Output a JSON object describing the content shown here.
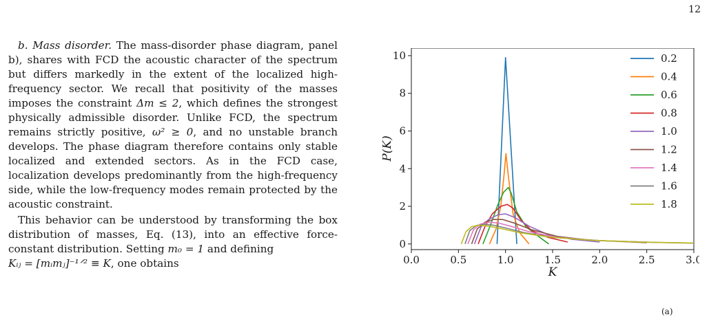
{
  "page_number": "12",
  "text": {
    "para1_heading": "b. Mass disorder.",
    "para1_body_a": " The mass-disorder phase diagram, panel b), shares with FCD the acoustic character of the spectrum but differs markedly in the extent of the localized high-frequency sector. We recall that positivity of the masses imposes the constraint ",
    "para1_constraint": "Δm ≤ 2",
    "para1_body_b": ", which defines the strongest physically admissible disorder. Unlike FCD, the spectrum remains strictly positive, ",
    "para1_omega": "ω² ≥ 0",
    "para1_body_c": ", and no unstable branch develops. The phase diagram therefore contains only stable localized and extended sectors. As in the FCD case, localization develops predominantly from the high-frequency side, while the low-frequency modes remain protected by the acoustic constraint.",
    "para2_body_a": "This behavior can be understood by transforming the box distribution of masses, Eq. (13), into an effective force-constant distribution. Setting ",
    "para2_m0": "m₀ = 1",
    "para2_body_b": " and defining",
    "para3_kij": "Kᵢⱼ = [mᵢmⱼ]⁻¹ᐟ² ≡ K",
    "para3_body": ", one obtains"
  },
  "chart_data": {
    "type": "line",
    "xlabel": "K",
    "ylabel": "P(K)",
    "xlim": [
      0.0,
      3.0
    ],
    "ylim": [
      -0.3,
      10.4
    ],
    "xticks": [
      "0.0",
      "0.5",
      "1.0",
      "1.5",
      "2.0",
      "2.5",
      "3.0"
    ],
    "yticks": [
      "0",
      "2",
      "4",
      "6",
      "8",
      "10"
    ],
    "legend_position": "top-right",
    "grid": false,
    "series": [
      {
        "name": "0.2",
        "color": "#1f77b4",
        "x": [
          0.91,
          1.0,
          1.12
        ],
        "y": [
          0.0,
          9.9,
          0.0
        ]
      },
      {
        "name": "0.4",
        "color": "#ff7f0e",
        "x": [
          0.83,
          0.9,
          0.95,
          0.985,
          1.005,
          1.03,
          1.08,
          1.15,
          1.25
        ],
        "y": [
          0.0,
          0.8,
          2.0,
          3.7,
          4.8,
          3.6,
          1.6,
          0.6,
          0.0
        ]
      },
      {
        "name": "0.6",
        "color": "#2ca02c",
        "x": [
          0.76,
          0.84,
          0.92,
          0.98,
          1.03,
          1.06,
          1.12,
          1.22,
          1.35,
          1.46
        ],
        "y": [
          0.0,
          1.0,
          2.1,
          2.75,
          3.0,
          2.7,
          1.7,
          0.9,
          0.4,
          0.0
        ]
      },
      {
        "name": "0.8",
        "color": "#d62728",
        "x": [
          0.71,
          0.78,
          0.86,
          0.95,
          1.02,
          1.08,
          1.16,
          1.28,
          1.45,
          1.66
        ],
        "y": [
          0.0,
          0.9,
          1.6,
          2.0,
          2.1,
          1.9,
          1.3,
          0.7,
          0.35,
          0.1
        ]
      },
      {
        "name": "1.0",
        "color": "#9467bd",
        "x": [
          0.67,
          0.74,
          0.82,
          0.92,
          1.0,
          1.1,
          1.25,
          1.45,
          1.7,
          2.0
        ],
        "y": [
          0.0,
          0.9,
          1.3,
          1.55,
          1.6,
          1.4,
          0.95,
          0.5,
          0.25,
          0.1
        ]
      },
      {
        "name": "1.2",
        "color": "#8c564b",
        "x": [
          0.64,
          0.7,
          0.78,
          0.87,
          0.97,
          1.1,
          1.28,
          1.55,
          1.9,
          2.5
        ],
        "y": [
          0.0,
          0.8,
          1.15,
          1.3,
          1.3,
          1.1,
          0.75,
          0.4,
          0.2,
          0.07
        ]
      },
      {
        "name": "1.4",
        "color": "#e377c2",
        "x": [
          0.6,
          0.66,
          0.73,
          0.82,
          0.92,
          1.05,
          1.25,
          1.55,
          2.0,
          2.6,
          3.0
        ],
        "y": [
          0.0,
          0.75,
          1.05,
          1.15,
          1.12,
          0.95,
          0.65,
          0.35,
          0.18,
          0.08,
          0.04
        ]
      },
      {
        "name": "1.6",
        "color": "#7f7f7f",
        "x": [
          0.57,
          0.62,
          0.69,
          0.77,
          0.87,
          1.0,
          1.2,
          1.5,
          2.0,
          2.6,
          3.0
        ],
        "y": [
          0.0,
          0.7,
          0.98,
          1.05,
          1.0,
          0.85,
          0.6,
          0.35,
          0.18,
          0.08,
          0.05
        ]
      },
      {
        "name": "1.8",
        "color": "#bcbd22",
        "x": [
          0.53,
          0.58,
          0.64,
          0.72,
          0.82,
          0.95,
          1.15,
          1.45,
          1.9,
          2.5,
          3.0
        ],
        "y": [
          0.0,
          0.65,
          0.92,
          1.0,
          0.95,
          0.82,
          0.6,
          0.38,
          0.2,
          0.09,
          0.05
        ]
      }
    ]
  },
  "caption_fragment": "(a)"
}
